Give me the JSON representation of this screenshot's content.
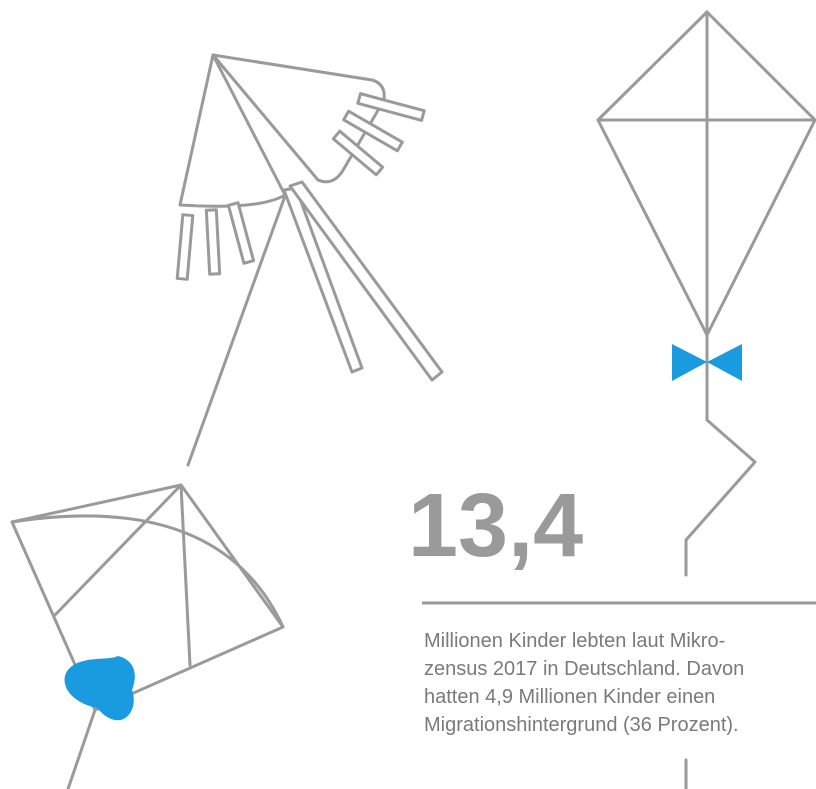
{
  "headline": {
    "number": "13,4"
  },
  "caption": {
    "lines": [
      "Millionen Kinder lebten laut Mikro-",
      "zensus 2017 in Deutschland. Davon",
      "hatten 4,9 Millionen Kinder einen",
      "Migrationshintergrund (36 Prozent)."
    ]
  }
}
